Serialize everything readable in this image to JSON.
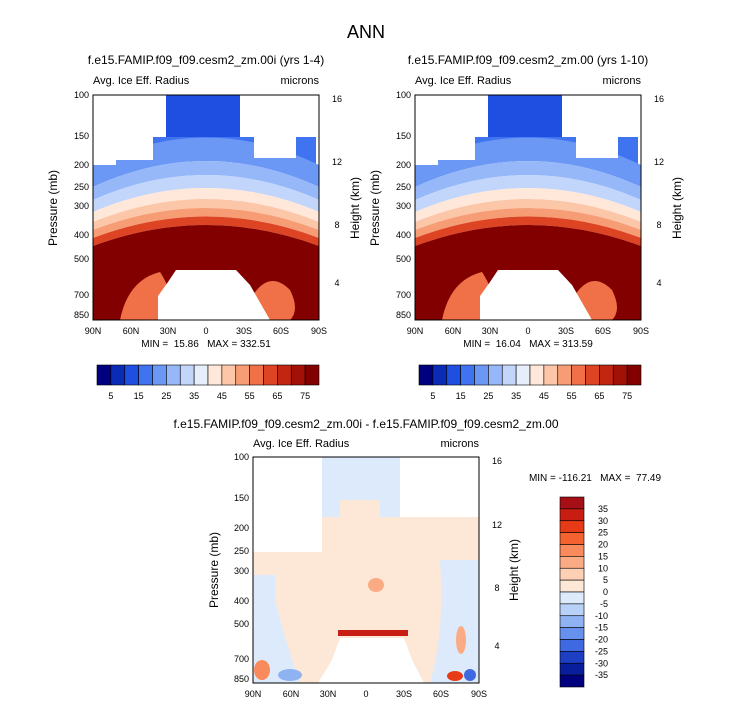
{
  "page_title": "ANN",
  "chart_data": [
    {
      "type": "heatmap",
      "title": "f.e15.FAMIP.f09_f09.cesm2_zm.00i (yrs 1-4)",
      "subtitle_left": "Avg. Ice Eff. Radius",
      "subtitle_right": "microns",
      "ylabel": "Pressure (mb)",
      "y2label": "Height (km)",
      "x_ticks": [
        "90N",
        "60N",
        "30N",
        "0",
        "30S",
        "60S",
        "90S"
      ],
      "y_ticks": [
        "100",
        "150",
        "200",
        "250",
        "300",
        "400",
        "500",
        "700",
        "850"
      ],
      "y2_ticks": [
        "16",
        "12",
        "8",
        "4"
      ],
      "stats": "MIN =  15.86   MAX = 332.51",
      "colorbar": {
        "orientation": "horizontal",
        "labels": [
          "5",
          "15",
          "25",
          "35",
          "45",
          "55",
          "65",
          "75"
        ],
        "colors": [
          "#00007f",
          "#0a2bb5",
          "#1f4fe0",
          "#3f73f0",
          "#6b97f5",
          "#97b8f8",
          "#c2d6fb",
          "#e6eefc",
          "#ffe7da",
          "#fcc6a8",
          "#f79d76",
          "#f07048",
          "#dd4424",
          "#c22510",
          "#a31006",
          "#820000"
        ]
      }
    },
    {
      "type": "heatmap",
      "title": "f.e15.FAMIP.f09_f09.cesm2_zm.00 (yrs 1-10)",
      "subtitle_left": "Avg. Ice Eff. Radius",
      "subtitle_right": "microns",
      "ylabel": "Pressure (mb)",
      "y2label": "Height (km)",
      "x_ticks": [
        "90N",
        "60N",
        "30N",
        "0",
        "30S",
        "60S",
        "90S"
      ],
      "y_ticks": [
        "100",
        "150",
        "200",
        "250",
        "300",
        "400",
        "500",
        "700",
        "850"
      ],
      "y2_ticks": [
        "16",
        "12",
        "8",
        "4"
      ],
      "stats": "MIN =  16.04   MAX = 313.59",
      "colorbar": {
        "orientation": "horizontal",
        "labels": [
          "5",
          "15",
          "25",
          "35",
          "45",
          "55",
          "65",
          "75"
        ],
        "colors": [
          "#00007f",
          "#0a2bb5",
          "#1f4fe0",
          "#3f73f0",
          "#6b97f5",
          "#97b8f8",
          "#c2d6fb",
          "#e6eefc",
          "#ffe7da",
          "#fcc6a8",
          "#f79d76",
          "#f07048",
          "#dd4424",
          "#c22510",
          "#a31006",
          "#820000"
        ]
      }
    },
    {
      "type": "heatmap",
      "title": "f.e15.FAMIP.f09_f09.cesm2_zm.00i - f.e15.FAMIP.f09_f09.cesm2_zm.00",
      "subtitle_left": "Avg. Ice Eff. Radius",
      "subtitle_right": "microns",
      "ylabel": "Pressure (mb)",
      "y2label": "Height (km)",
      "x_ticks": [
        "90N",
        "60N",
        "30N",
        "0",
        "30S",
        "60S",
        "90S"
      ],
      "y_ticks": [
        "100",
        "150",
        "200",
        "250",
        "300",
        "400",
        "500",
        "700",
        "850"
      ],
      "y2_ticks": [
        "16",
        "12",
        "8",
        "4"
      ],
      "stats": "MIN = -116.21   MAX =  77.49",
      "colorbar": {
        "orientation": "vertical",
        "labels": [
          "35",
          "30",
          "25",
          "20",
          "15",
          "10",
          "5",
          "0",
          "-5",
          "-10",
          "-15",
          "-20",
          "-25",
          "-30",
          "-35"
        ],
        "colors": [
          "#a50f15",
          "#c81d12",
          "#e63b16",
          "#f4622f",
          "#f88a5c",
          "#fbab84",
          "#fdd0b6",
          "#fde8d8",
          "#dceafb",
          "#b8d2f7",
          "#8fb3f2",
          "#6691ec",
          "#3f69e0",
          "#1c3fc4",
          "#081e9a",
          "#00007f"
        ]
      }
    }
  ]
}
